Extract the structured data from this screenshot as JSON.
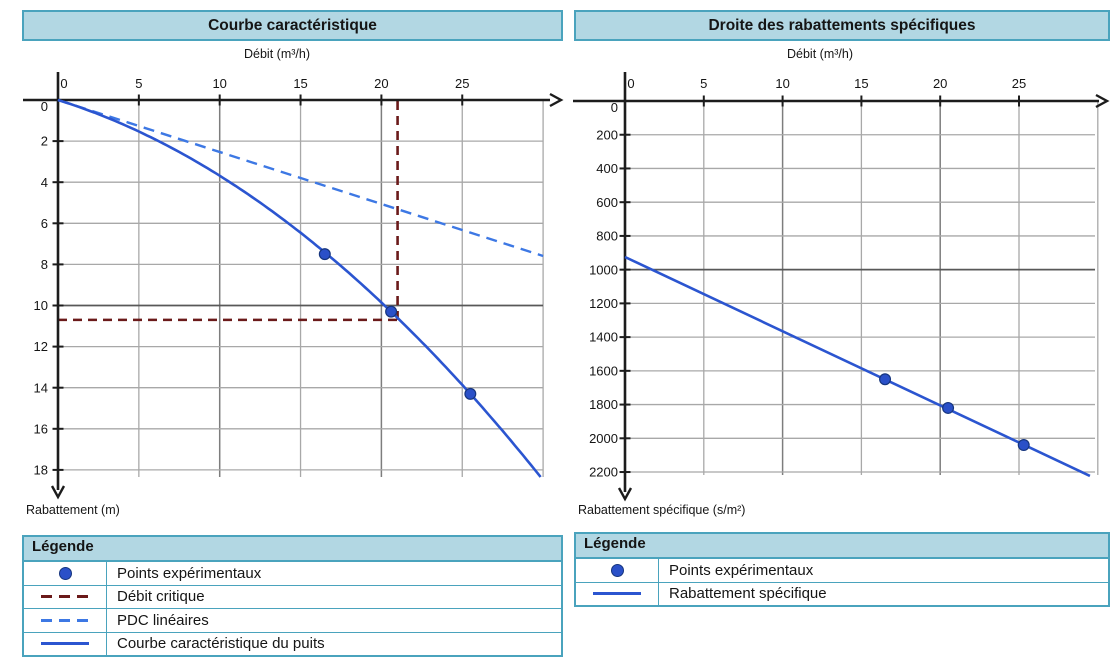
{
  "colors": {
    "panel_border": "#4aa3bd",
    "header_bg": "#b2d7e3",
    "axis": "#1c1c1c",
    "text": "#151515",
    "grid_minor": "#a8a8a8",
    "grid_major": "#7d7d7d",
    "grid_emphasis": "#585858",
    "curve_blue": "#2b55d0",
    "dash_blue": "#3d78e4",
    "point_fill": "#2a50c8",
    "point_stroke": "#16357e",
    "critical_red": "#6b1a1a"
  },
  "chart_data": [
    {
      "type": "line",
      "title": "Courbe caractéristique",
      "xlabel": "Débit (m³/h)",
      "ylabel": "Rabattement (m)",
      "xlim": [
        0,
        30
      ],
      "ylim": [
        0,
        18.4
      ],
      "y_axis_direction": "down",
      "x_ticks": [
        0,
        5,
        10,
        15,
        20,
        25
      ],
      "y_ticks": [
        0,
        2,
        4,
        6,
        8,
        10,
        12,
        14,
        16,
        18
      ],
      "grid": "on",
      "points": {
        "label": "Points expérimentaux",
        "xy": [
          [
            16.5,
            7.5
          ],
          [
            20.6,
            10.3
          ],
          [
            25.5,
            14.3
          ]
        ]
      },
      "well_curve": {
        "label": "Courbe caractéristique du puits",
        "model": "s = B·Q + C·Q²",
        "B": 0.2446,
        "C": 0.0124,
        "x_start": 0,
        "x_end": 30
      },
      "linear_losses": {
        "label": "PDC linéaires",
        "slope": 0.253,
        "x_start": 0,
        "x_end": 30
      },
      "critical": {
        "label": "Débit critique",
        "Q": 21,
        "s": 10.7
      },
      "legend": {
        "header": "Légende",
        "rows": [
          {
            "symbol": "point",
            "label": "Points expérimentaux"
          },
          {
            "symbol": "dash-darkred",
            "label": "Débit critique"
          },
          {
            "symbol": "dash-blue",
            "label": "PDC linéaires"
          },
          {
            "symbol": "solid-blue",
            "label": "Courbe caractéristique du puits"
          }
        ]
      }
    },
    {
      "type": "line",
      "title": "Droite des rabattements spécifiques",
      "xlabel": "Débit (m³/h)",
      "ylabel": "Rabattement spécifique (s/m²)",
      "xlim": [
        0,
        30
      ],
      "ylim": [
        0,
        2300
      ],
      "y_axis_direction": "down",
      "x_ticks": [
        0,
        5,
        10,
        15,
        20,
        25
      ],
      "y_ticks": [
        0,
        200,
        400,
        600,
        800,
        1000,
        1200,
        1400,
        1600,
        1800,
        2000,
        2200
      ],
      "grid": "on",
      "points": {
        "label": "Points expérimentaux",
        "xy": [
          [
            16.5,
            1650
          ],
          [
            20.5,
            1820
          ],
          [
            25.3,
            2040
          ]
        ]
      },
      "specific_line": {
        "label": "Rabattement spécifique",
        "intercept": 925,
        "slope": 44,
        "x_start": 0,
        "x_end": 29.5
      },
      "legend": {
        "header": "Légende",
        "rows": [
          {
            "symbol": "point",
            "label": "Points expérimentaux"
          },
          {
            "symbol": "solid-blue",
            "label": "Rabattement spécifique"
          }
        ]
      }
    }
  ]
}
